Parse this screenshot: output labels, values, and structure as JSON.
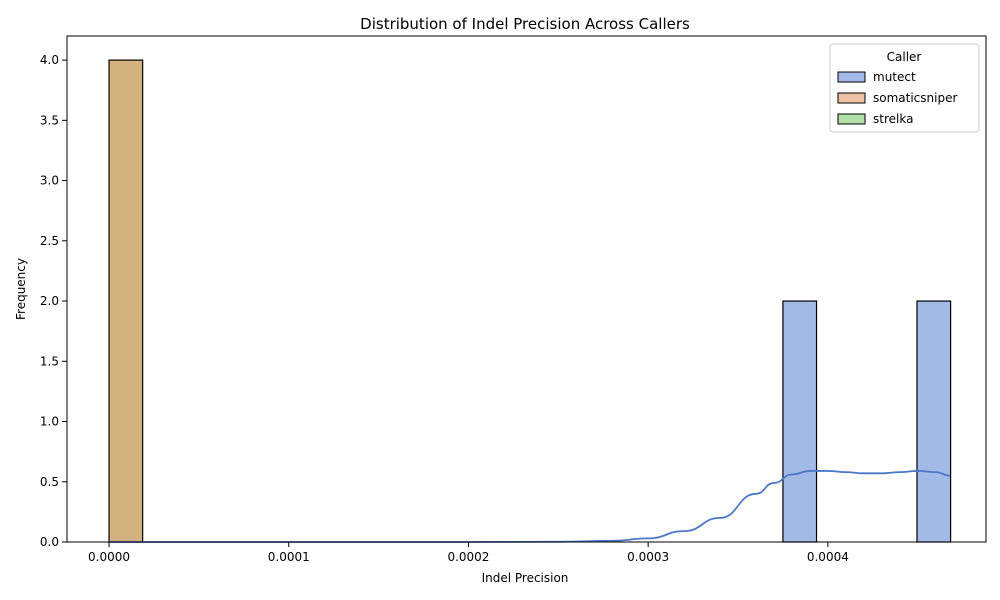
{
  "chart_data": {
    "type": "histogram",
    "title": "Distribution of Indel Precision Across Callers",
    "xlabel": "Indel Precision",
    "ylabel": "Frequency",
    "xlim": [
      -2.34e-05,
      0.000488
    ],
    "ylim": [
      0,
      4.2
    ],
    "x_ticks": [
      0.0,
      0.0001,
      0.0002,
      0.0003,
      0.0004
    ],
    "x_tick_labels": [
      "0.0000",
      "0.0001",
      "0.0002",
      "0.0003",
      "0.0004"
    ],
    "y_ticks": [
      0.0,
      0.5,
      1.0,
      1.5,
      2.0,
      2.5,
      3.0,
      3.5,
      4.0
    ],
    "y_tick_labels": [
      "0.0",
      "0.5",
      "1.0",
      "1.5",
      "2.0",
      "2.5",
      "3.0",
      "3.5",
      "4.0"
    ],
    "grid": false,
    "legend": {
      "title": "Caller",
      "placement": "top-right",
      "entries": [
        "mutect",
        "somaticsniper",
        "strelka"
      ]
    },
    "colors": {
      "mutect": "#a3bae6",
      "somaticsniper": "#f1bfa1",
      "strelka": "#b2dfa8",
      "overlap_fill": "#d3b37d",
      "kde_line": "#4c78c8",
      "edge": "#000000"
    },
    "series": [
      {
        "name": "mutect",
        "bins": [
          {
            "x0": 0.000375,
            "x1": 0.0003937,
            "count": 2
          },
          {
            "x0": 0.0004496,
            "x1": 0.0004683,
            "count": 2
          }
        ],
        "kde": {
          "x": [
            0.0,
            5e-05,
            0.0001,
            0.00015,
            0.0002,
            0.00025,
            0.00028,
            0.0003,
            0.00032,
            0.00034,
            0.00036,
            0.00037,
            0.00038,
            0.00039,
            0.0004,
            0.00041,
            0.00042,
            0.00043,
            0.00044,
            0.00045,
            0.00046,
            0.000468
          ],
          "y": [
            0.0,
            0.0,
            0.0,
            0.0,
            0.0,
            0.002,
            0.01,
            0.03,
            0.09,
            0.2,
            0.4,
            0.49,
            0.56,
            0.59,
            0.59,
            0.58,
            0.57,
            0.57,
            0.58,
            0.59,
            0.58,
            0.55
          ]
        }
      },
      {
        "name": "somaticsniper",
        "bins": [
          {
            "x0": 0.0,
            "x1": 1.87e-05,
            "count": 4
          }
        ]
      },
      {
        "name": "strelka",
        "bins": [
          {
            "x0": 0.0,
            "x1": 1.87e-05,
            "count": 4
          }
        ]
      }
    ]
  }
}
